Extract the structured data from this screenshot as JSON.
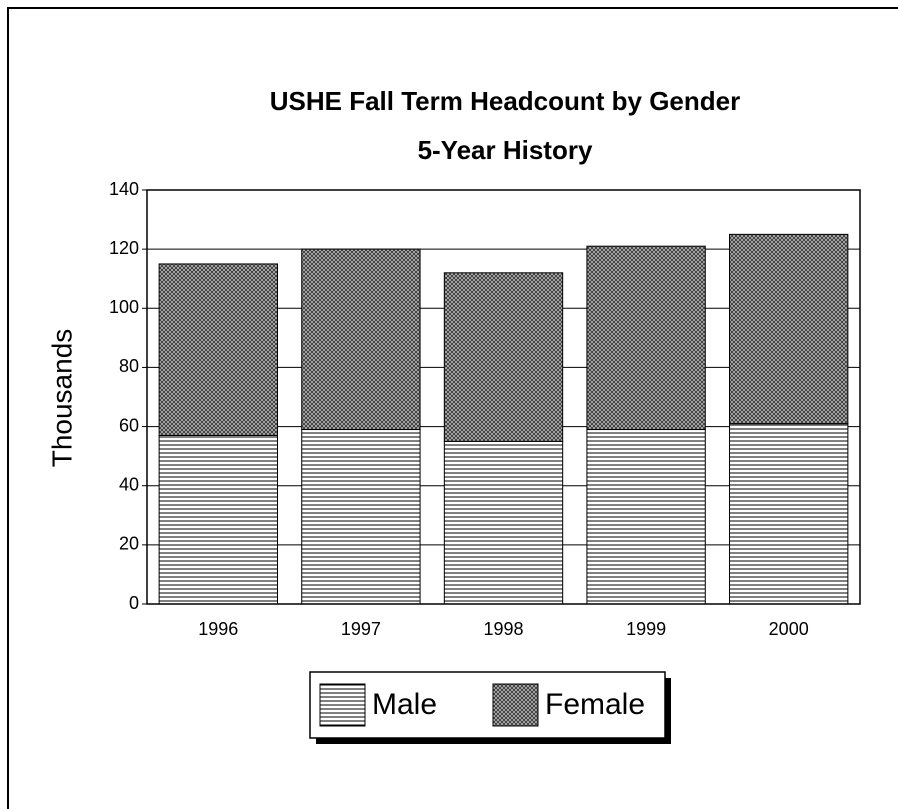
{
  "chart_data": {
    "type": "stacked_bar",
    "title": "USHE Fall Term Headcount by Gender",
    "subtitle": "5-Year History",
    "y_label": "Thousands",
    "categories": [
      "1996",
      "1997",
      "1998",
      "1999",
      "2000"
    ],
    "series": [
      {
        "name": "Male",
        "color": "#000000",
        "pattern": "horizontal-lines",
        "values": [
          57,
          59,
          55,
          59,
          61
        ]
      },
      {
        "name": "Female",
        "color": "#000000",
        "pattern": "crosshatch",
        "values": [
          58,
          61,
          57,
          62,
          64
        ]
      }
    ],
    "ylim": [
      0,
      140
    ],
    "yticks": [
      0,
      20,
      40,
      60,
      80,
      100,
      120,
      140
    ],
    "grid": true,
    "legend": "bottom"
  }
}
